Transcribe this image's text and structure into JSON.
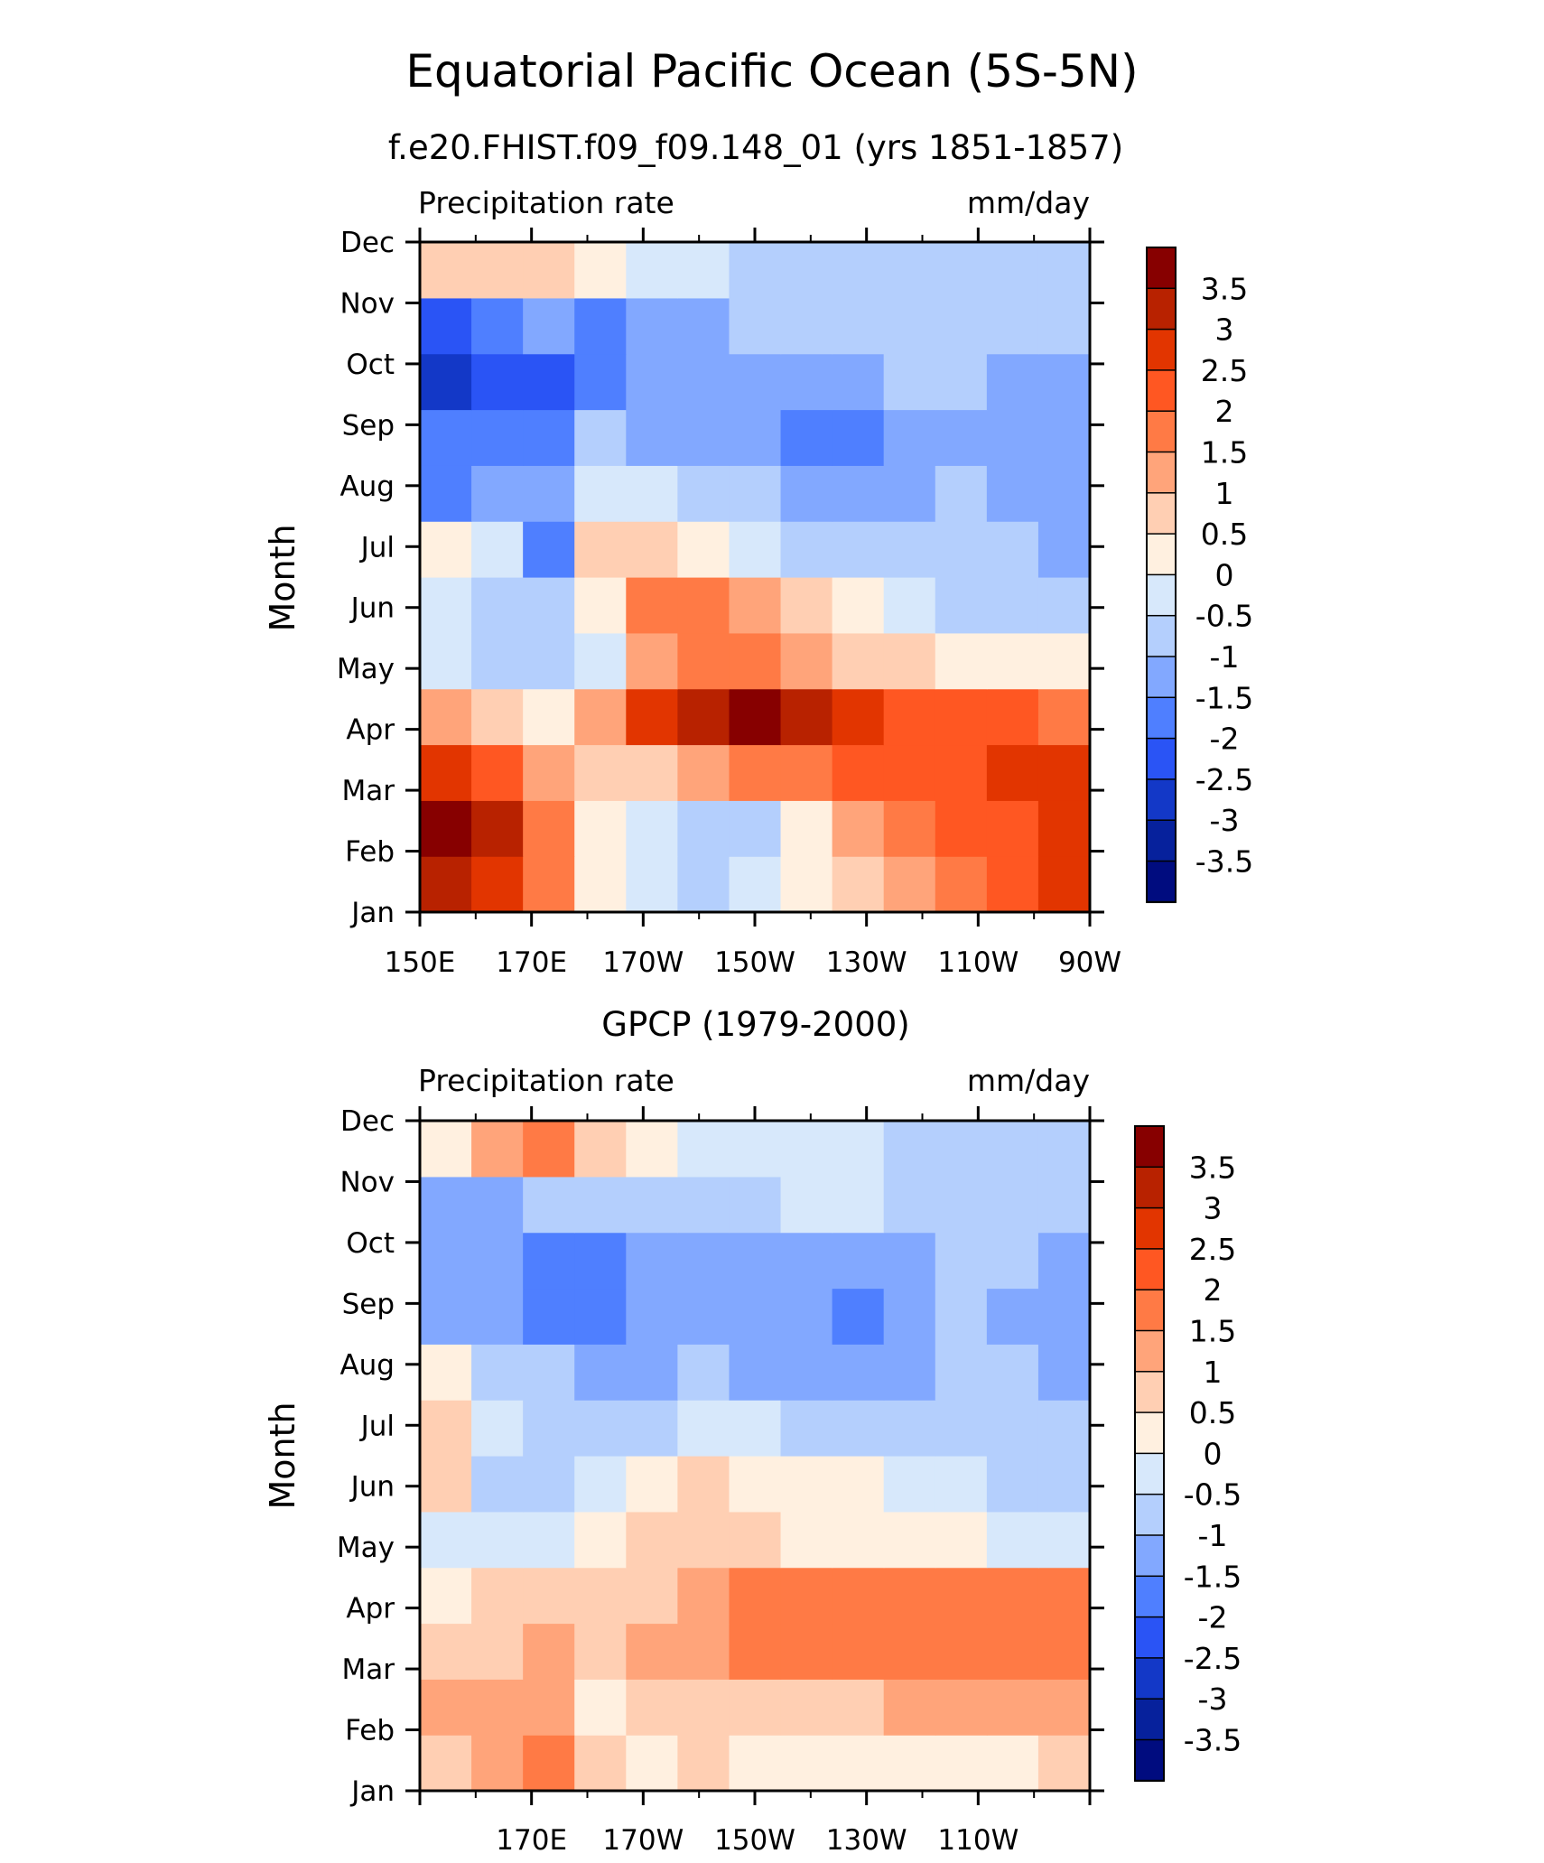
{
  "main_title": "Equatorial Pacific Ocean (5S-5N)",
  "chart_data": [
    {
      "type": "heatmap",
      "title": "f.e20.FHIST.f09_f09.148_01 (yrs 1851-1857)",
      "left_label": "Precipitation rate",
      "right_label": "mm/day",
      "ylabel": "Month",
      "x_ticks": [
        "150E",
        "170E",
        "170W",
        "150W",
        "130W",
        "110W",
        "90W"
      ],
      "y_ticks": [
        "Jan",
        "Feb",
        "Mar",
        "Apr",
        "May",
        "Jun",
        "Jul",
        "Aug",
        "Sep",
        "Oct",
        "Nov",
        "Dec"
      ],
      "x_range": [
        "150E",
        "90W"
      ],
      "colorbar_labels": [
        "3.5",
        "3",
        "2.5",
        "2",
        "1.5",
        "1",
        "0.5",
        "0",
        "-0.5",
        "-1",
        "-1.5",
        "-2",
        "-2.5",
        "-3",
        "-3.5"
      ],
      "values": [
        [
          3.3,
          2.8,
          1.6,
          0.4,
          -0.5,
          -0.8,
          -0.4,
          0.3,
          0.9,
          1.4,
          1.9,
          2.2,
          2.8
        ],
        [
          3.6,
          3.3,
          1.8,
          0.3,
          -0.4,
          -0.9,
          -0.6,
          0.4,
          1.1,
          1.6,
          2.1,
          2.4,
          2.9
        ],
        [
          2.7,
          2.3,
          1.4,
          0.6,
          0.7,
          1.3,
          1.6,
          1.9,
          2.1,
          2.3,
          2.4,
          2.6,
          2.8
        ],
        [
          1.2,
          0.6,
          0.1,
          1.1,
          2.6,
          3.2,
          3.5,
          3.2,
          2.7,
          2.3,
          2.1,
          2.0,
          1.9
        ],
        [
          -0.4,
          -0.9,
          -0.6,
          -0.3,
          1.2,
          1.7,
          1.6,
          1.2,
          0.9,
          0.6,
          0.3,
          0.2,
          0.2
        ],
        [
          -0.5,
          -1.0,
          -0.8,
          0.2,
          1.8,
          1.6,
          1.1,
          0.6,
          0.1,
          -0.4,
          -0.6,
          -0.7,
          -0.8
        ],
        [
          0.3,
          -0.5,
          -1.6,
          0.6,
          0.9,
          0.3,
          -0.3,
          -0.7,
          -0.9,
          -1.0,
          -1.0,
          -1.0,
          -1.1
        ],
        [
          -1.8,
          -1.5,
          -1.1,
          -0.5,
          -0.4,
          -0.6,
          -0.9,
          -1.1,
          -1.3,
          -1.1,
          -1.0,
          -1.1,
          -1.2
        ],
        [
          -2.0,
          -1.9,
          -1.7,
          -1.0,
          -1.2,
          -1.4,
          -1.5,
          -1.6,
          -1.6,
          -1.4,
          -1.1,
          -1.3,
          -1.3
        ],
        [
          -2.6,
          -2.5,
          -2.1,
          -1.8,
          -1.5,
          -1.3,
          -1.3,
          -1.4,
          -1.3,
          -1.0,
          -0.9,
          -1.3,
          -1.2
        ],
        [
          -2.3,
          -1.8,
          -1.5,
          -2.0,
          -1.3,
          -1.1,
          -1.0,
          -0.9,
          -0.9,
          -0.9,
          -0.8,
          -0.9,
          -0.9
        ],
        [
          0.6,
          0.9,
          0.6,
          0.2,
          -0.3,
          -0.5,
          -0.8,
          -0.8,
          -0.7,
          -0.8,
          -0.8,
          -0.8,
          -0.8
        ]
      ]
    },
    {
      "type": "heatmap",
      "title": "GPCP (1979-2000)",
      "left_label": "Precipitation rate",
      "right_label": "mm/day",
      "ylabel": "Month",
      "x_ticks": [
        "170E",
        "170W",
        "150W",
        "130W",
        "110W"
      ],
      "y_ticks": [
        "Jan",
        "Feb",
        "Mar",
        "Apr",
        "May",
        "Jun",
        "Jul",
        "Aug",
        "Sep",
        "Oct",
        "Nov",
        "Dec"
      ],
      "x_range": [
        "150E",
        "90W"
      ],
      "colorbar_labels": [
        "3.5",
        "3",
        "2.5",
        "2",
        "1.5",
        "1",
        "0.5",
        "0",
        "-0.5",
        "-1",
        "-1.5",
        "-2",
        "-2.5",
        "-3",
        "-3.5"
      ],
      "values": [
        [
          0.9,
          1.2,
          1.8,
          0.6,
          0.4,
          0.5,
          0.4,
          0.3,
          0.2,
          0.3,
          0.3,
          0.4,
          0.5
        ],
        [
          1.2,
          1.3,
          1.3,
          0.4,
          0.7,
          0.9,
          0.9,
          0.8,
          0.9,
          1.0,
          1.1,
          1.2,
          1.3
        ],
        [
          0.9,
          0.7,
          1.2,
          0.5,
          1.0,
          1.4,
          1.6,
          1.7,
          1.8,
          1.9,
          1.5,
          1.8,
          1.9
        ],
        [
          0.3,
          0.6,
          0.6,
          0.9,
          0.8,
          1.1,
          1.5,
          1.6,
          1.9,
          1.8,
          1.7,
          1.8,
          1.6
        ],
        [
          -0.1,
          -0.5,
          -0.4,
          0.4,
          0.6,
          0.7,
          0.6,
          0.4,
          0.3,
          0.1,
          0.0,
          -0.1,
          -0.2
        ],
        [
          0.9,
          -0.6,
          -0.7,
          -0.5,
          0.4,
          0.5,
          0.3,
          0.2,
          0.0,
          -0.3,
          -0.5,
          -0.7,
          -0.8
        ],
        [
          0.5,
          -0.4,
          -0.6,
          -0.8,
          -0.6,
          -0.4,
          -0.5,
          -0.6,
          -0.7,
          -0.7,
          -0.6,
          -0.8,
          -1.0
        ],
        [
          0.2,
          -0.7,
          -1.0,
          -1.1,
          -1.1,
          -1.0,
          -1.2,
          -1.4,
          -1.5,
          -1.3,
          -0.9,
          -1.0,
          -1.3
        ],
        [
          -1.5,
          -1.3,
          -1.9,
          -1.6,
          -1.4,
          -1.1,
          -1.4,
          -1.5,
          -1.6,
          -1.3,
          -0.9,
          -1.2,
          -1.4
        ],
        [
          -1.3,
          -1.4,
          -1.6,
          -1.9,
          -1.5,
          -1.1,
          -1.3,
          -1.5,
          -1.5,
          -1.2,
          -0.9,
          -0.9,
          -1.3
        ],
        [
          -1.3,
          -1.1,
          -1.0,
          -0.9,
          -0.8,
          -0.7,
          -0.6,
          -0.5,
          -0.5,
          -0.6,
          -0.7,
          -0.9,
          -1.0
        ],
        [
          0.4,
          1.3,
          1.8,
          0.9,
          0.3,
          -0.2,
          -0.4,
          -0.5,
          -0.5,
          -0.6,
          -0.6,
          -0.6,
          -0.6
        ]
      ]
    }
  ],
  "colors": {
    "levels_high_to_low": [
      "#870000",
      "#b82200",
      "#e23500",
      "#ff5722",
      "#ff7a45",
      "#ffa47a",
      "#ffcfb3",
      "#fff0e0",
      "#d7e8fb",
      "#b4cffd",
      "#82a8ff",
      "#4f7fff",
      "#2a54f5",
      "#1338c7",
      "#06219c",
      "#000c7f"
    ]
  }
}
